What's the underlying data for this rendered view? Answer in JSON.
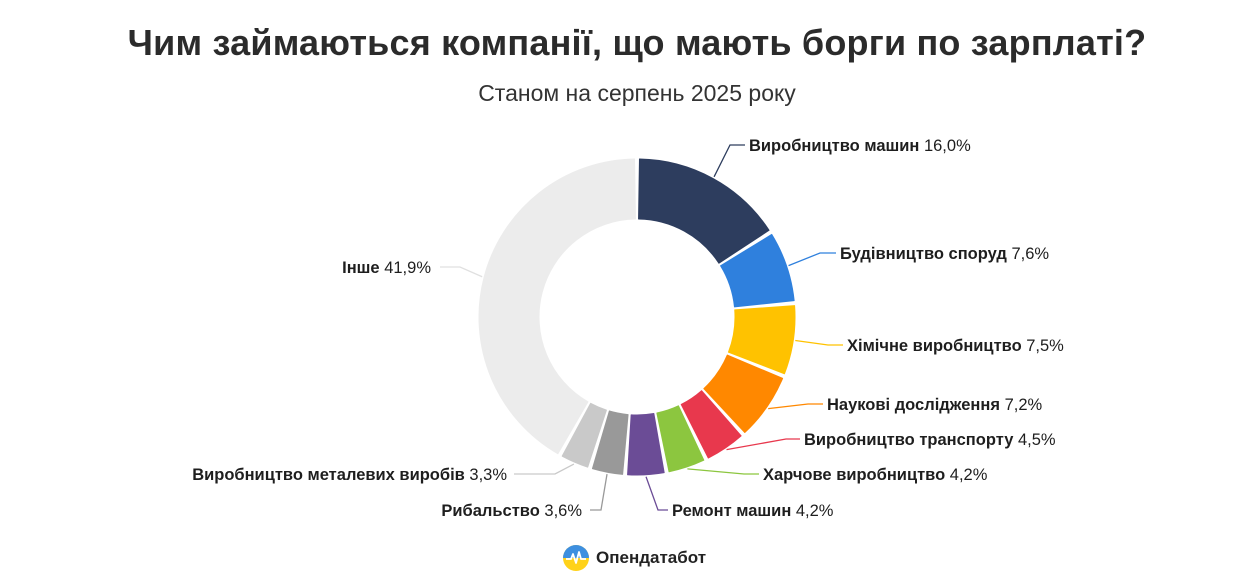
{
  "title": "Чим займаються компанії, що мають борги по зарплаті?",
  "subtitle": "Станом на серпень 2025 року",
  "brand": {
    "name": "Опендатабот",
    "icon": "opendatabot-logo-icon"
  },
  "chart_data": {
    "type": "pie",
    "variant": "donut",
    "series": [
      {
        "name": "Виробництво машин",
        "value": 16.0,
        "label": "16,0%",
        "color": "#2d3d5e"
      },
      {
        "name": "Будівництво споруд",
        "value": 7.6,
        "label": "7,6%",
        "color": "#2f80dd"
      },
      {
        "name": "Хімічне виробництво",
        "value": 7.5,
        "label": "7,5%",
        "color": "#ffc200"
      },
      {
        "name": "Наукові дослідження",
        "value": 7.2,
        "label": "7,2%",
        "color": "#ff8800"
      },
      {
        "name": "Виробництво транспорту",
        "value": 4.5,
        "label": "4,5%",
        "color": "#e8384d"
      },
      {
        "name": "Харчове виробництво",
        "value": 4.2,
        "label": "4,2%",
        "color": "#8cc63f"
      },
      {
        "name": "Ремонт машин",
        "value": 4.2,
        "label": "4,2%",
        "color": "#6b4c96"
      },
      {
        "name": "Рибальство",
        "value": 3.6,
        "label": "3,6%",
        "color": "#999999"
      },
      {
        "name": "Виробництво металевих виробів",
        "value": 3.3,
        "label": "3,3%",
        "color": "#c9c9c9"
      },
      {
        "name": "Інше",
        "value": 41.9,
        "label": "41,9%",
        "color": "#ececec"
      }
    ]
  }
}
